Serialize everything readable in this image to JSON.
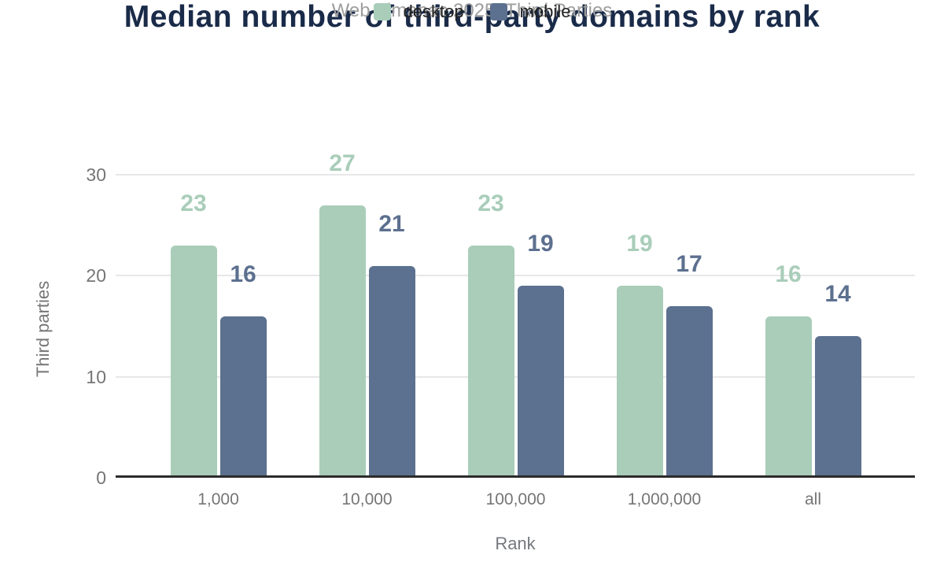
{
  "chart_data": {
    "type": "bar",
    "title": "Median number of third-party domains by rank",
    "subtitle": "Web Almanac 2025: Third Parties",
    "categories": [
      "1,000",
      "10,000",
      "100,000",
      "1,000,000",
      "all"
    ],
    "series": [
      {
        "name": "desktop",
        "color": "#a9cdb9",
        "values": [
          23,
          27,
          23,
          19,
          16
        ]
      },
      {
        "name": "mobile",
        "color": "#5c708f",
        "values": [
          16,
          21,
          19,
          17,
          14
        ]
      }
    ],
    "xlabel": "Rank",
    "ylabel": "Third parties",
    "yticks": [
      0,
      10,
      20,
      30
    ],
    "ylim": [
      0,
      30
    ],
    "grid": true,
    "legend_position": "top",
    "data_labels": true
  },
  "colors": {
    "title": "#1a2b49",
    "subtitle": "#9e9e9e",
    "axis_text": "#757575",
    "gridline": "#e7e7e7",
    "baseline": "#2b2b2b",
    "background": "#ffffff"
  }
}
